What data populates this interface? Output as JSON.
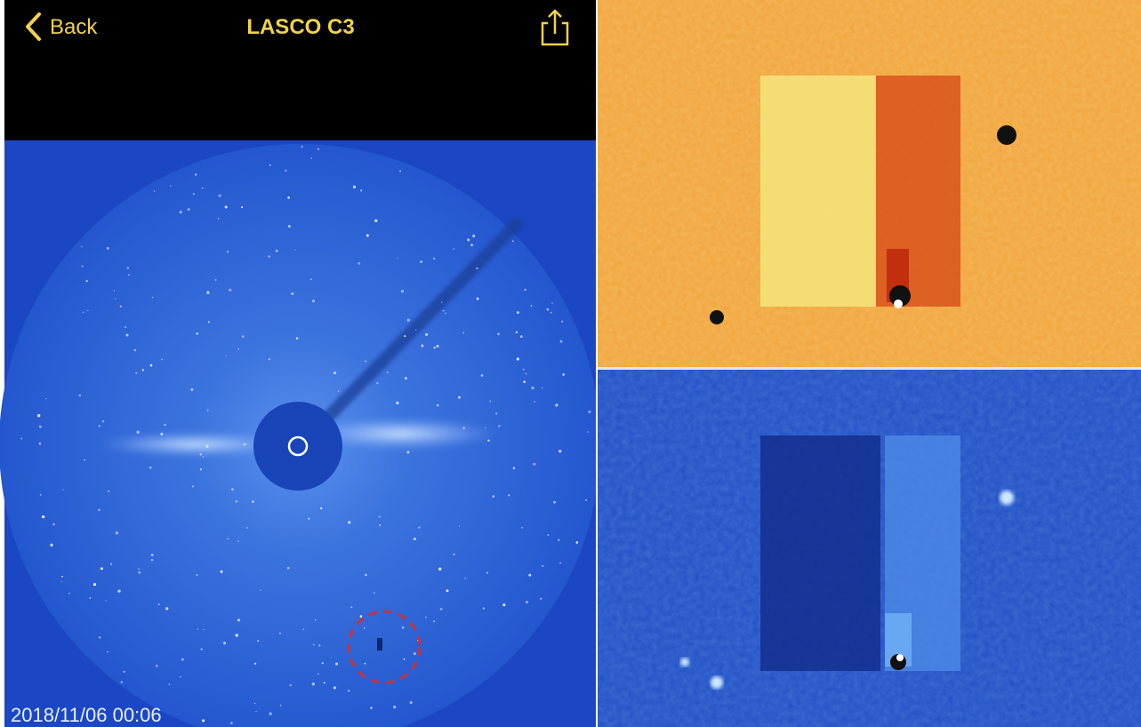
{
  "nav": {
    "back": "Back",
    "title": "LASCO C3"
  },
  "image": {
    "timestamp": "2018/11/06 00:06"
  }
}
